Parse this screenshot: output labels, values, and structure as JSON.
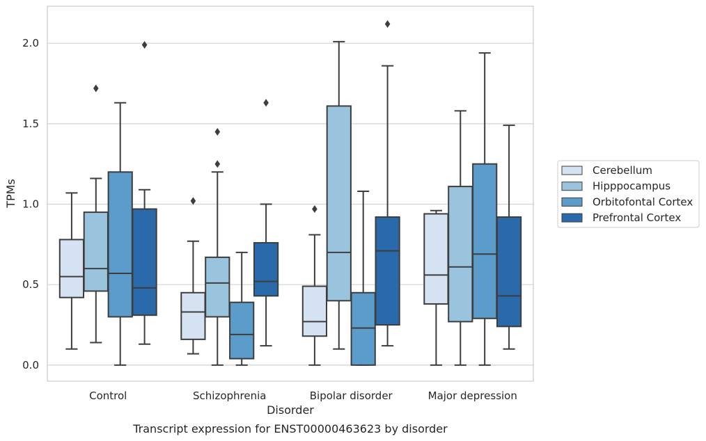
{
  "chart_data": {
    "type": "box",
    "title": "",
    "caption": "Transcript expression for ENST00000463623 by disorder",
    "xlabel": "Disorder",
    "ylabel": "TPMs",
    "ylim": [
      -0.1,
      2.23
    ],
    "yticks": [
      "0.0",
      "0.5",
      "1.0",
      "1.5",
      "2.0"
    ],
    "ytick_values": [
      0.0,
      0.5,
      1.0,
      1.5,
      2.0
    ],
    "grid": "horizontal",
    "legend_position": "right",
    "categories": [
      "Control",
      "Schizophrenia",
      "Bipolar disorder",
      "Major depression"
    ],
    "series": [
      {
        "name": "Cerebellum",
        "color": "#d4e2f1",
        "boxes": [
          {
            "whisker_low": 0.1,
            "q1": 0.42,
            "median": 0.55,
            "q3": 0.78,
            "whisker_high": 1.07,
            "outliers": []
          },
          {
            "whisker_low": 0.07,
            "q1": 0.16,
            "median": 0.33,
            "q3": 0.45,
            "whisker_high": 0.77,
            "outliers": [
              1.02
            ]
          },
          {
            "whisker_low": 0.0,
            "q1": 0.18,
            "median": 0.27,
            "q3": 0.49,
            "whisker_high": 0.81,
            "outliers": [
              0.97
            ]
          },
          {
            "whisker_low": 0.0,
            "q1": 0.38,
            "median": 0.56,
            "q3": 0.94,
            "whisker_high": 0.96,
            "outliers": []
          }
        ]
      },
      {
        "name": "Hipppocampus",
        "color": "#9ac4de",
        "boxes": [
          {
            "whisker_low": 0.14,
            "q1": 0.46,
            "median": 0.6,
            "q3": 0.95,
            "whisker_high": 1.16,
            "outliers": [
              1.72
            ]
          },
          {
            "whisker_low": 0.0,
            "q1": 0.3,
            "median": 0.51,
            "q3": 0.67,
            "whisker_high": 1.2,
            "outliers": [
              1.25,
              1.45
            ]
          },
          {
            "whisker_low": 0.1,
            "q1": 0.4,
            "median": 0.7,
            "q3": 1.61,
            "whisker_high": 2.01,
            "outliers": []
          },
          {
            "whisker_low": 0.0,
            "q1": 0.27,
            "median": 0.61,
            "q3": 1.11,
            "whisker_high": 1.58,
            "outliers": []
          }
        ]
      },
      {
        "name": "Orbitofontal Cortex",
        "color": "#5b9ccb",
        "boxes": [
          {
            "whisker_low": 0.0,
            "q1": 0.3,
            "median": 0.57,
            "q3": 1.2,
            "whisker_high": 1.63,
            "outliers": []
          },
          {
            "whisker_low": 0.0,
            "q1": 0.04,
            "median": 0.19,
            "q3": 0.39,
            "whisker_high": 0.7,
            "outliers": []
          },
          {
            "whisker_low": 0.0,
            "q1": 0.0,
            "median": 0.23,
            "q3": 0.45,
            "whisker_high": 1.08,
            "outliers": []
          },
          {
            "whisker_low": 0.0,
            "q1": 0.29,
            "median": 0.69,
            "q3": 1.25,
            "whisker_high": 1.94,
            "outliers": []
          }
        ]
      },
      {
        "name": "Prefrontal Cortex",
        "color": "#2a6aab",
        "boxes": [
          {
            "whisker_low": 0.13,
            "q1": 0.31,
            "median": 0.48,
            "q3": 0.97,
            "whisker_high": 1.09,
            "outliers": [
              1.99
            ]
          },
          {
            "whisker_low": 0.12,
            "q1": 0.43,
            "median": 0.52,
            "q3": 0.76,
            "whisker_high": 1.0,
            "outliers": [
              1.63
            ]
          },
          {
            "whisker_low": 0.12,
            "q1": 0.25,
            "median": 0.71,
            "q3": 0.92,
            "whisker_high": 1.86,
            "outliers": [
              2.12
            ]
          },
          {
            "whisker_low": 0.1,
            "q1": 0.24,
            "median": 0.43,
            "q3": 0.92,
            "whisker_high": 1.49,
            "outliers": []
          }
        ]
      }
    ]
  }
}
